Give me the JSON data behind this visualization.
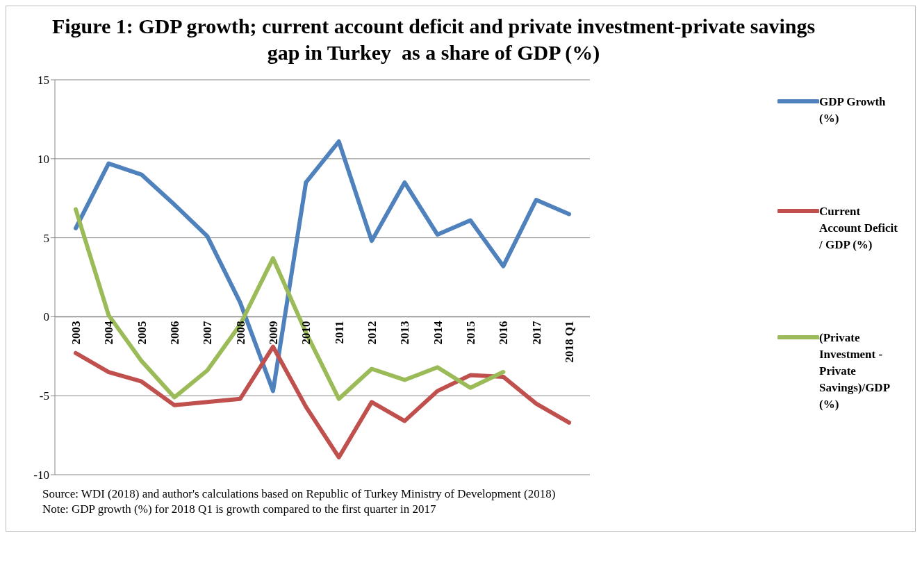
{
  "chart_data": {
    "type": "line",
    "title": "Figure 1: GDP growth; current account deficit and private investment-private savings gap in Turkey  as a share of GDP (%)",
    "categories": [
      "2003",
      "2004",
      "2005",
      "2006",
      "2007",
      "2008",
      "2009",
      "2010",
      "2011",
      "2012",
      "2013",
      "2014",
      "2015",
      "2016",
      "2017",
      "2018 Q1"
    ],
    "series": [
      {
        "name": "GDP Growth (%)",
        "color": "#4f81bd",
        "values": [
          5.6,
          9.7,
          9.0,
          7.1,
          5.1,
          0.9,
          -4.7,
          8.5,
          11.1,
          4.8,
          8.5,
          5.2,
          6.1,
          3.2,
          7.4,
          6.5
        ]
      },
      {
        "name": "Current Account Deficit / GDP (%)",
        "color": "#c0504d",
        "values": [
          -2.3,
          -3.5,
          -4.1,
          -5.6,
          -5.4,
          -5.2,
          -1.9,
          -5.7,
          -8.9,
          -5.4,
          -6.6,
          -4.7,
          -3.7,
          -3.8,
          -5.5,
          -6.7
        ]
      },
      {
        "name": "(Private Investment - Private Savings)/GDP (%)",
        "color": "#9bbb59",
        "values": [
          6.8,
          0.1,
          -2.8,
          -5.1,
          -3.4,
          -0.5,
          3.7,
          -1.0,
          -5.2,
          -3.3,
          -4.0,
          -3.2,
          -4.5,
          -3.5,
          null,
          null
        ]
      }
    ],
    "ylim": [
      -10,
      15
    ],
    "yticks": [
      -10,
      -5,
      0,
      5,
      10,
      15
    ],
    "grid": "y",
    "legend": "right",
    "marker": "none",
    "line_style": "solid",
    "annotations": [
      "Source: WDI (2018) and author's calculations based on Republic of Turkey Ministry of Development (2018)",
      "Note: GDP growth (%) for 2018 Q1 is growth compared to the first quarter in 2017"
    ]
  }
}
